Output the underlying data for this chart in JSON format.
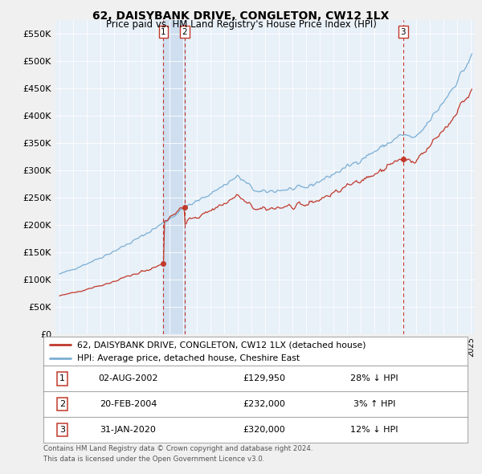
{
  "title": "62, DAISYBANK DRIVE, CONGLETON, CW12 1LX",
  "subtitle": "Price paid vs. HM Land Registry's House Price Index (HPI)",
  "legend_label_red": "62, DAISYBANK DRIVE, CONGLETON, CW12 1LX (detached house)",
  "legend_label_blue": "HPI: Average price, detached house, Cheshire East",
  "footer_line1": "Contains HM Land Registry data © Crown copyright and database right 2024.",
  "footer_line2": "This data is licensed under the Open Government Licence v3.0.",
  "transactions": [
    {
      "num": 1,
      "date": "02-AUG-2002",
      "price": "£129,950",
      "rel": "28% ↓ HPI",
      "x_year": 2002.58,
      "y": 129950
    },
    {
      "num": 2,
      "date": "20-FEB-2004",
      "price": "£232,000",
      "rel": "3% ↑ HPI",
      "x_year": 2004.12,
      "y": 232000
    },
    {
      "num": 3,
      "date": "31-JAN-2020",
      "price": "£320,000",
      "rel": "12% ↓ HPI",
      "x_year": 2020.08,
      "y": 320000
    }
  ],
  "background_color": "#f0f0f0",
  "plot_bg_color": "#e8f0f8",
  "red_color": "#c0392b",
  "blue_color": "#7bafd4",
  "shade_color": "#c5d8ee",
  "vline_color": "#c0392b",
  "grid_color": "#ffffff",
  "ylim": [
    0,
    575000
  ],
  "yticks": [
    0,
    50000,
    100000,
    150000,
    200000,
    250000,
    300000,
    350000,
    400000,
    450000,
    500000,
    550000
  ],
  "xlim_start": 1994.7,
  "xlim_end": 2025.3
}
